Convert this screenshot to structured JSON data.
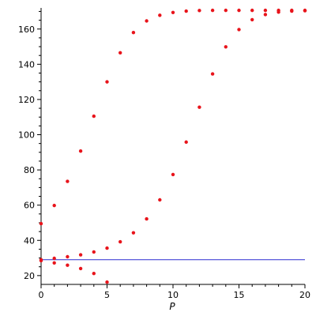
{
  "chart_data": {
    "type": "scatter",
    "title": "",
    "xlabel": "P",
    "ylabel": "",
    "xlim": [
      0,
      20
    ],
    "ylim": [
      15,
      172
    ],
    "x_ticks": [
      0,
      5,
      10,
      15,
      20
    ],
    "y_ticks": [
      20,
      40,
      60,
      80,
      100,
      120,
      140,
      160
    ],
    "grid": false,
    "legend": "none",
    "colors": {
      "points": "#e8141b",
      "line": "#2b2bd0",
      "axes": "#000000"
    },
    "series": [
      {
        "x": [
          0,
          1,
          2,
          3,
          4,
          5,
          6,
          7,
          8,
          9,
          10,
          11,
          12,
          13,
          14,
          15,
          16,
          17,
          18,
          19,
          20
        ],
        "values": [
          49.5,
          59.8,
          73.5,
          90.7,
          110.5,
          130.0,
          146.5,
          158.0,
          164.6,
          167.8,
          169.4,
          170.2,
          170.5,
          170.6,
          170.6,
          170.6,
          170.6,
          170.6,
          170.6,
          170.6,
          170.6
        ]
      },
      {
        "x": [
          0,
          1,
          2,
          3,
          4,
          5,
          6,
          7,
          8,
          9,
          10,
          11,
          12,
          13,
          14,
          15,
          16,
          17,
          18,
          19,
          20
        ],
        "values": [
          29.0,
          29.8,
          30.7,
          31.8,
          33.4,
          35.6,
          39.2,
          44.3,
          52.2,
          63.0,
          77.4,
          95.8,
          115.6,
          134.5,
          149.9,
          159.7,
          165.3,
          168.2,
          169.6,
          170.2,
          170.4
        ]
      },
      {
        "x": [
          0,
          1,
          2,
          3,
          4,
          5
        ],
        "values": [
          28.5,
          27.2,
          25.9,
          24.0,
          21.2,
          16.3
        ]
      },
      {
        "type": "line",
        "x": [
          0,
          20
        ],
        "values": [
          29.0,
          29.0
        ]
      }
    ]
  }
}
